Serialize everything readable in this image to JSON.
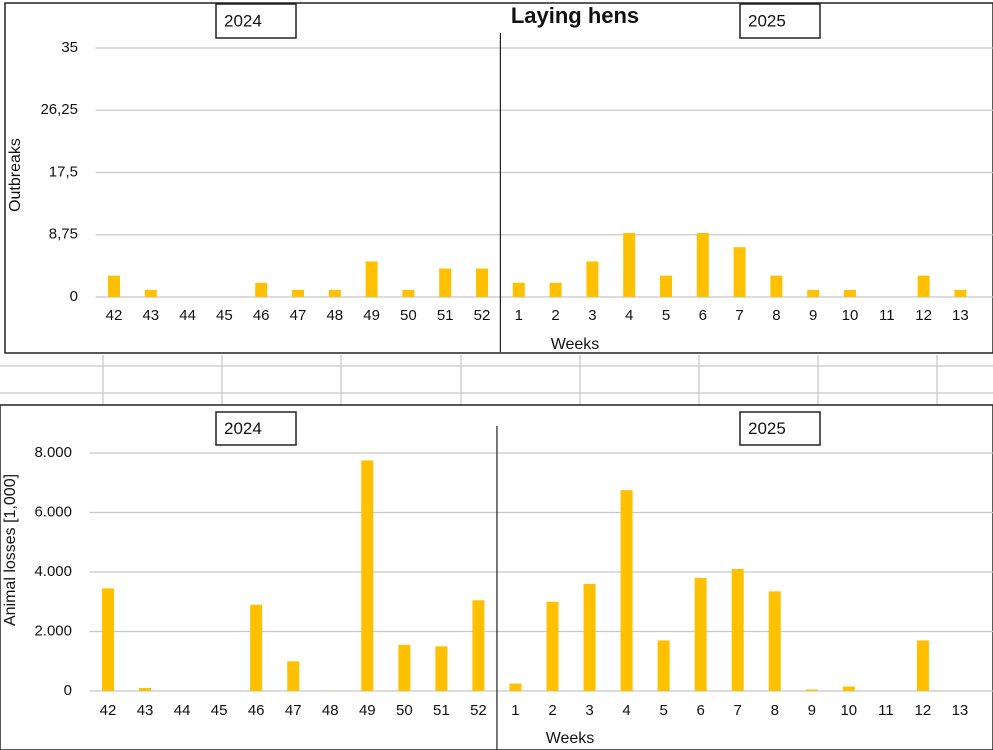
{
  "chart_data": [
    {
      "type": "bar",
      "title": "Laying hens",
      "annotations": [
        "2024",
        "2025"
      ],
      "x_label": "Weeks",
      "y_label": "Outbreaks",
      "color": "#ffc000",
      "grid": true,
      "categories": [
        "42",
        "43",
        "44",
        "45",
        "46",
        "47",
        "48",
        "49",
        "50",
        "51",
        "52",
        "1",
        "2",
        "3",
        "4",
        "5",
        "6",
        "7",
        "8",
        "9",
        "10",
        "11",
        "12",
        "13"
      ],
      "values": [
        3,
        1,
        0,
        0,
        2,
        1,
        1,
        5,
        1,
        4,
        4,
        2,
        2,
        5,
        9,
        3,
        9,
        7,
        3,
        1,
        1,
        0,
        3,
        1
      ],
      "ylim": [
        0,
        35
      ],
      "yticks": [
        0,
        {
          "value": 8.75,
          "label": "8,75"
        },
        {
          "value": 17.5,
          "label": "17,5"
        },
        {
          "value": 26.25,
          "label": "26,25"
        },
        35
      ]
    },
    {
      "type": "bar",
      "annotations": [
        "2024",
        "2025"
      ],
      "x_label": "Weeks",
      "y_label": "Animal losses [1,000]",
      "color": "#ffc000",
      "grid": true,
      "categories": [
        "42",
        "43",
        "44",
        "45",
        "46",
        "47",
        "48",
        "49",
        "50",
        "51",
        "52",
        "1",
        "2",
        "3",
        "4",
        "5",
        "6",
        "7",
        "8",
        "9",
        "10",
        "11",
        "12",
        "13"
      ],
      "values": [
        3450,
        100,
        0,
        0,
        2900,
        1000,
        10,
        7750,
        1550,
        1500,
        3050,
        250,
        3000,
        3600,
        6750,
        1700,
        3800,
        4100,
        3350,
        50,
        150,
        0,
        1700,
        0
      ],
      "ylim": [
        0,
        8000
      ],
      "yticks": [
        0,
        {
          "value": 2000,
          "label": "2.000"
        },
        {
          "value": 4000,
          "label": "4.000"
        },
        {
          "value": 6000,
          "label": "6.000"
        },
        {
          "value": 8000,
          "label": "8.000"
        }
      ]
    }
  ]
}
